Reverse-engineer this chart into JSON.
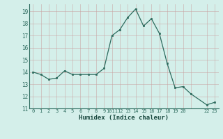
{
  "x": [
    0,
    1,
    2,
    3,
    4,
    5,
    6,
    7,
    8,
    9,
    10,
    11,
    12,
    13,
    14,
    15,
    16,
    17,
    18,
    19,
    20,
    22,
    23
  ],
  "y": [
    14.0,
    13.8,
    13.4,
    13.5,
    14.1,
    13.8,
    13.8,
    13.8,
    13.8,
    14.3,
    17.0,
    17.5,
    18.5,
    19.2,
    17.8,
    18.4,
    17.2,
    14.7,
    12.7,
    12.8,
    12.2,
    11.3,
    11.5
  ],
  "xlabel": "Humidex (Indice chaleur)",
  "ylim": [
    11,
    19.6
  ],
  "yticks": [
    11,
    12,
    13,
    14,
    15,
    16,
    17,
    18,
    19
  ],
  "xtick_positions": [
    0,
    1,
    2,
    3,
    4,
    5,
    6,
    7,
    8,
    9,
    10,
    11,
    12,
    13,
    14,
    15,
    16,
    17,
    18,
    19,
    20,
    22,
    23
  ],
  "xtick_labels": [
    "0",
    "1",
    "2",
    "3",
    "4",
    "5",
    "6",
    "7",
    "8",
    "9",
    "1011",
    "12",
    "13",
    "14",
    "15",
    "16",
    "17",
    "18",
    "19",
    "20",
    "",
    "22",
    "23"
  ],
  "line_color": "#2d6b5e",
  "marker_color": "#2d6b5e",
  "bg_color": "#d4efea",
  "grid_color": "#b8ddd8",
  "xlabel_color": "#1a4a40"
}
